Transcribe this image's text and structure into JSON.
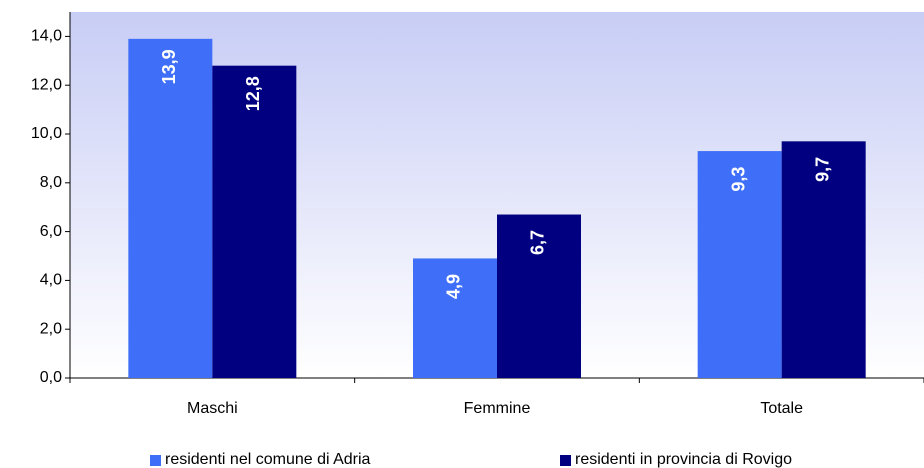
{
  "chart_data": {
    "type": "bar",
    "categories": [
      "Maschi",
      "Femmine",
      "Totale"
    ],
    "series": [
      {
        "name": "residenti nel comune di Adria",
        "color": "#3f6ff8",
        "values": [
          13.9,
          4.9,
          9.3
        ],
        "value_labels": [
          "13,9",
          "4,9",
          "9,3"
        ]
      },
      {
        "name": "residenti in provincia di Rovigo",
        "color": "#000080",
        "values": [
          12.8,
          6.7,
          9.7
        ],
        "value_labels": [
          "12,8",
          "6,7",
          "9,7"
        ]
      }
    ],
    "ylim": [
      0,
      15
    ],
    "yticks": [
      {
        "value": 0,
        "label": "0,0"
      },
      {
        "value": 2,
        "label": "2,0"
      },
      {
        "value": 4,
        "label": "4,0"
      },
      {
        "value": 6,
        "label": "6,0"
      },
      {
        "value": 8,
        "label": "8,0"
      },
      {
        "value": 10,
        "label": "10,0"
      },
      {
        "value": 12,
        "label": "12,0"
      },
      {
        "value": 14,
        "label": "14,0"
      }
    ],
    "legend": "bottom"
  }
}
